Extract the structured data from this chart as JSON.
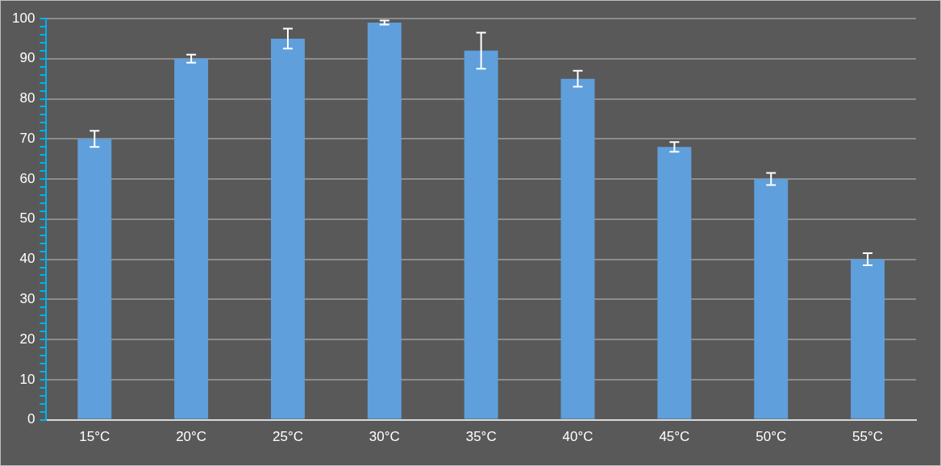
{
  "chart_data": {
    "type": "bar",
    "categories": [
      "15°C",
      "20°C",
      "25°C",
      "30°C",
      "35°C",
      "40°C",
      "45°C",
      "50°C",
      "55°C"
    ],
    "values": [
      70,
      90,
      95,
      99,
      92,
      85,
      68,
      60,
      40
    ],
    "errors": [
      2,
      1,
      2.5,
      0.5,
      4.5,
      2,
      1.2,
      1.5,
      1.5
    ],
    "color": "#5f9fdc",
    "ylim": [
      0,
      100
    ],
    "yticks": [
      0,
      {
        "value": 2,
        "label": null
      },
      {
        "value": 4,
        "label": null
      },
      {
        "value": 6,
        "label": null
      },
      {
        "value": 8,
        "label": null
      },
      10,
      {
        "value": 12,
        "label": null
      },
      {
        "value": 14,
        "label": null
      },
      {
        "value": 16,
        "label": null
      },
      {
        "value": 18,
        "label": null
      },
      20,
      {
        "value": 22,
        "label": null
      },
      {
        "value": 24,
        "label": null
      },
      {
        "value": 26,
        "label": null
      },
      {
        "value": 28,
        "label": null
      },
      30,
      {
        "value": 32,
        "label": null
      },
      {
        "value": 34,
        "label": null
      },
      {
        "value": 36,
        "label": null
      },
      {
        "value": 38,
        "label": null
      },
      40,
      {
        "value": 42,
        "label": null
      },
      {
        "value": 44,
        "label": null
      },
      {
        "value": 46,
        "label": null
      },
      {
        "value": 48,
        "label": null
      },
      50,
      {
        "value": 52,
        "label": null
      },
      {
        "value": 54,
        "label": null
      },
      {
        "value": 56,
        "label": null
      },
      {
        "value": 58,
        "label": null
      },
      60,
      {
        "value": 62,
        "label": null
      },
      {
        "value": 64,
        "label": null
      },
      {
        "value": 66,
        "label": null
      },
      {
        "value": 68,
        "label": null
      },
      70,
      {
        "value": 72,
        "label": null
      },
      {
        "value": 74,
        "label": null
      },
      {
        "value": 76,
        "label": null
      },
      {
        "value": 78,
        "label": null
      },
      80,
      {
        "value": 82,
        "label": null
      },
      {
        "value": 84,
        "label": null
      },
      {
        "value": 86,
        "label": null
      },
      {
        "value": 88,
        "label": null
      },
      90,
      {
        "value": 92,
        "label": null
      },
      {
        "value": 94,
        "label": null
      },
      {
        "value": 96,
        "label": null
      },
      {
        "value": 98,
        "label": null
      },
      100
    ],
    "grid": "y",
    "legend": false
  }
}
